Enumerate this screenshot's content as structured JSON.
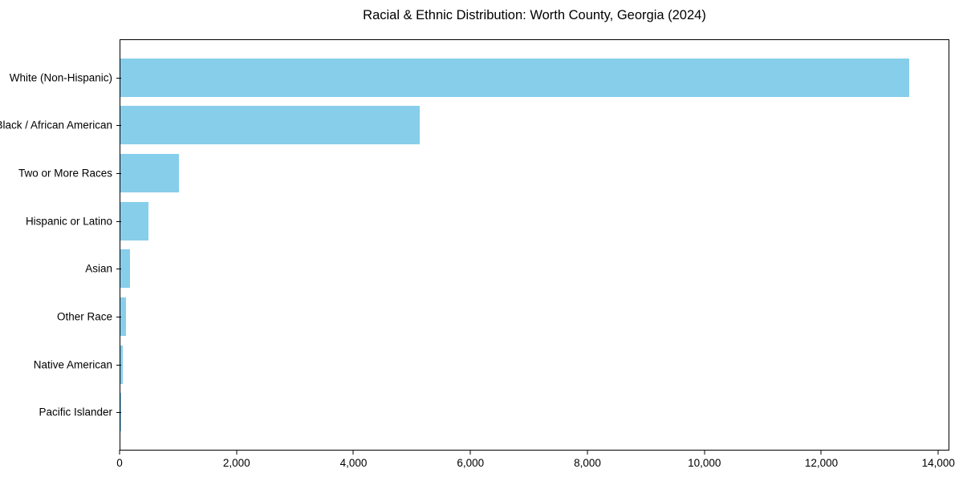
{
  "title": "Racial & Ethnic Distribution: Worth County, Georgia (2024)",
  "chart_data": {
    "type": "bar",
    "orientation": "horizontal",
    "title": "Racial & Ethnic Distribution: Worth County, Georgia (2024)",
    "categories": [
      "White (Non-Hispanic)",
      "Black / African American",
      "Two or More Races",
      "Hispanic or Latino",
      "Asian",
      "Other Race",
      "Native American",
      "Pacific Islander"
    ],
    "values": [
      13500,
      5120,
      1000,
      480,
      165,
      90,
      45,
      10
    ],
    "xlabel": "",
    "ylabel": "",
    "xlim": [
      0,
      14175
    ],
    "x_ticks": [
      0,
      2000,
      4000,
      6000,
      8000,
      10000,
      12000,
      14000
    ],
    "x_tick_labels": [
      "0",
      "2,000",
      "4,000",
      "6,000",
      "8,000",
      "10,000",
      "12,000",
      "14,000"
    ],
    "bar_color": "#87CEEB",
    "grid": false,
    "legend_position": "none"
  }
}
